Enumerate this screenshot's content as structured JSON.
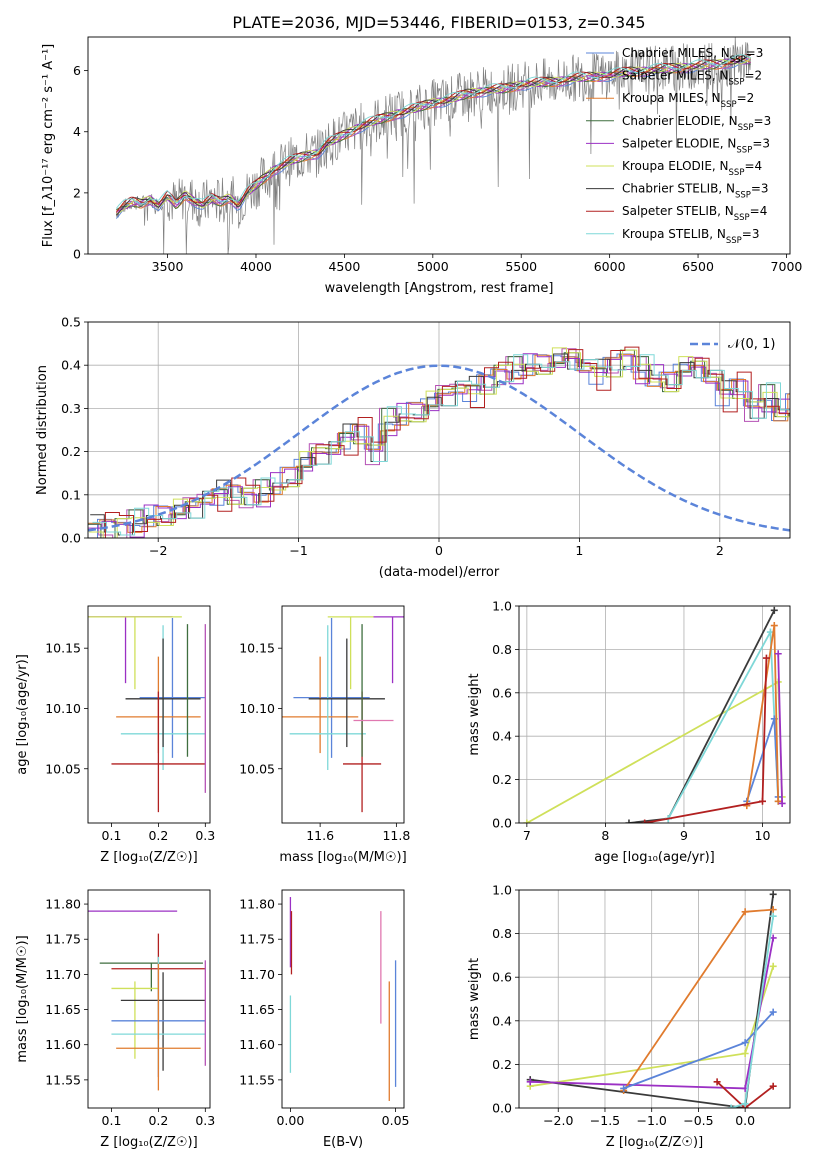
{
  "figure_title": "PLATE=2036, MJD=53446, FIBERID=0153, z=0.345",
  "colors": {
    "chabrier_miles": "#5b84d9",
    "salpeter_miles": "#b552b5",
    "kroupa_miles": "#e07b2e",
    "chabrier_elodie": "#3f6e3f",
    "salpeter_elodie": "#9b30c4",
    "kroupa_elodie": "#cfe05a",
    "chabrier_stelib": "#3a3a3a",
    "salpeter_stelib": "#b22020",
    "kroupa_stelib": "#7fd8d8",
    "data": "#808080",
    "pink": "#e078b0",
    "gaussian": "#5b84d9",
    "grid": "#b0b0b0"
  },
  "chart_data": [
    {
      "id": "spectrum",
      "type": "line",
      "title": "PLATE=2036, MJD=53446, FIBERID=0153, z=0.345",
      "xlabel": "wavelength [Angstrom, rest frame]",
      "ylabel": "Flux [f_λ10⁻¹⁷ erg cm⁻² s⁻¹ A⁻¹]",
      "xlim": [
        3050,
        7020
      ],
      "ylim": [
        0,
        7.1
      ],
      "xticks": [
        "3500",
        "4000",
        "4500",
        "5000",
        "5500",
        "6000",
        "6500",
        "7000"
      ],
      "yticks": [
        "0",
        "2",
        "4",
        "6"
      ],
      "grid": false,
      "legend_position": "top-right",
      "legend": [
        {
          "label": "Chabrier MILES, N",
          "sub": "SSP",
          "suffix": "=3"
        },
        {
          "label": "Salpeter MILES, N",
          "sub": "SSP",
          "suffix": "=2"
        },
        {
          "label": "Kroupa MILES, N",
          "sub": "SSP",
          "suffix": "=2"
        },
        {
          "label": "Chabrier ELODIE, N",
          "sub": "SSP",
          "suffix": "=3"
        },
        {
          "label": "Salpeter ELODIE, N",
          "sub": "SSP",
          "suffix": "=3"
        },
        {
          "label": "Kroupa ELODIE, N",
          "sub": "SSP",
          "suffix": "=4"
        },
        {
          "label": "Chabrier STELIB, N",
          "sub": "SSP",
          "suffix": "=3"
        },
        {
          "label": "Salpeter STELIB, N",
          "sub": "SSP",
          "suffix": "=4"
        },
        {
          "label": "Kroupa STELIB, N",
          "sub": "SSP",
          "suffix": "=3"
        }
      ],
      "model_continuum": {
        "x": [
          3210,
          3250,
          3300,
          3350,
          3400,
          3450,
          3500,
          3550,
          3600,
          3650,
          3700,
          3750,
          3800,
          3850,
          3900,
          3950,
          4000,
          4050,
          4100,
          4150,
          4200,
          4250,
          4300,
          4350,
          4400,
          4450,
          4500,
          4550,
          4600,
          4700,
          4800,
          4900,
          5000,
          5100,
          5200,
          5300,
          5400,
          5500,
          5600,
          5700,
          5800,
          5900,
          6000,
          6100,
          6200,
          6300,
          6400,
          6500,
          6600,
          6700,
          6800
        ],
        "y": [
          1.35,
          1.55,
          1.7,
          1.65,
          1.8,
          1.6,
          1.9,
          1.6,
          1.95,
          1.75,
          1.6,
          1.8,
          1.7,
          1.85,
          1.6,
          2.0,
          2.25,
          2.5,
          2.75,
          2.9,
          3.05,
          3.15,
          3.25,
          3.3,
          3.6,
          3.75,
          3.9,
          4.05,
          4.2,
          4.4,
          4.6,
          4.75,
          4.95,
          5.05,
          5.25,
          5.35,
          5.4,
          5.55,
          5.6,
          5.65,
          5.75,
          5.8,
          5.85,
          5.95,
          6.0,
          6.05,
          6.1,
          6.15,
          6.2,
          6.3,
          6.35
        ]
      }
    },
    {
      "id": "residuals",
      "type": "bar",
      "xlabel": "(data-model)/error",
      "ylabel": "Normed distribution",
      "xlim": [
        -2.5,
        2.5
      ],
      "ylim": [
        0,
        0.5
      ],
      "xticks": [
        "−2",
        "−1",
        "0",
        "1",
        "2"
      ],
      "yticks": [
        "0.0",
        "0.1",
        "0.2",
        "0.3",
        "0.4",
        "0.5"
      ],
      "grid": true,
      "legend_position": "top-right",
      "legend": [
        {
          "label": "𝒩(0, 1)"
        }
      ],
      "bin_width": 0.1,
      "bin_start": -2.5,
      "values": [
        0.02,
        0.025,
        0.03,
        0.035,
        0.045,
        0.05,
        0.06,
        0.075,
        0.095,
        0.1,
        0.105,
        0.1,
        0.105,
        0.12,
        0.14,
        0.17,
        0.2,
        0.21,
        0.23,
        0.245,
        0.2,
        0.27,
        0.28,
        0.29,
        0.31,
        0.335,
        0.35,
        0.34,
        0.36,
        0.385,
        0.39,
        0.395,
        0.4,
        0.41,
        0.42,
        0.4,
        0.38,
        0.4,
        0.42,
        0.39,
        0.37,
        0.36,
        0.39,
        0.4,
        0.375,
        0.33,
        0.35,
        0.3,
        0.325,
        0.29,
        0.31,
        0.28,
        0.25,
        0.26,
        0.22,
        0.21,
        0.2,
        0.18,
        0.16,
        0.14,
        0.13,
        0.12,
        0.11,
        0.105,
        0.1,
        0.09,
        0.08,
        0.07,
        0.065,
        0.06,
        0.055,
        0.05,
        0.048,
        0.045,
        0.04,
        0.04,
        0.038,
        0.035,
        0.03,
        0.03,
        0.03,
        0.03,
        0.02,
        0.02,
        0.02,
        0.02,
        0.02,
        0.02,
        0.02,
        0.02,
        0.02,
        0.02,
        0.02,
        0.02,
        0.02,
        0.02,
        0.02,
        0.02,
        0.02,
        0.02
      ],
      "series_offsets": [
        0.0,
        0.012,
        -0.01,
        0.018,
        -0.015,
        0.006,
        0.022,
        -0.02,
        0.01
      ],
      "gaussian": {
        "mean": 0,
        "sigma": 1
      }
    },
    {
      "id": "age_vs_Z",
      "type": "scatter",
      "xlabel": "Z [log₁₀(Z/Z☉)]",
      "ylabel": "age  [log₁₀(age/yr)]",
      "xlim": [
        0.05,
        0.31
      ],
      "ylim": [
        10.005,
        10.185
      ],
      "xticks": [
        "0.1",
        "0.2",
        "0.3"
      ],
      "yticks": [
        "10.05",
        "10.10",
        "10.15"
      ],
      "grid": false,
      "points": [
        {
          "series": "chabrier_miles",
          "x": 0.23,
          "xerr": 0.07,
          "y": 10.109,
          "yerr_lo": 0.05,
          "yerr_hi": 0.066
        },
        {
          "series": "kroupa_miles",
          "x": 0.2,
          "xerr": 0.09,
          "y": 10.093,
          "yerr_lo": 0.03,
          "yerr_hi": 0.05
        },
        {
          "series": "kroupa_stelib",
          "x": 0.21,
          "xerr": 0.09,
          "y": 10.079,
          "yerr_lo": 0.03,
          "yerr_hi": 0.09
        },
        {
          "series": "chabrier_stelib",
          "x": 0.21,
          "xerr": 0.08,
          "y": 10.108,
          "yerr_lo": 0.04,
          "yerr_hi": 0.05
        },
        {
          "series": "salpeter_stelib",
          "x": 0.2,
          "xerr": 0.1,
          "y": 10.054,
          "yerr_lo": 0.04,
          "yerr_hi": 0.06
        },
        {
          "series": "salpeter_elodie",
          "x": 0.13,
          "xerr": 0.1,
          "y": 10.176,
          "yerr_lo": 0.055,
          "yerr_hi": 0.0
        },
        {
          "series": "kroupa_elodie",
          "x": 0.15,
          "xerr": 0.1,
          "y": 10.176,
          "yerr_lo": 0.06,
          "yerr_hi": 0.0
        },
        {
          "series": "chabrier_elodie",
          "x": 0.262,
          "xerr": 0.0,
          "y": 10.11,
          "yerr_lo": 0.05,
          "yerr_hi": 0.06
        },
        {
          "series": "salpeter_miles",
          "x": 0.3,
          "xerr": 0.0,
          "y": 10.1,
          "yerr_lo": 0.07,
          "yerr_hi": 0.07
        }
      ]
    },
    {
      "id": "age_vs_mass",
      "type": "scatter",
      "xlabel": "mass [log₁₀(M/M☉)]",
      "ylabel": "",
      "xlim": [
        11.5,
        11.82
      ],
      "ylim": [
        10.005,
        10.185
      ],
      "xticks": [
        "11.6",
        "11.8"
      ],
      "yticks": [
        "10.05",
        "10.10",
        "10.15"
      ],
      "grid": false,
      "points": [
        {
          "series": "chabrier_miles",
          "x": 11.63,
          "xerr": 0.1,
          "y": 10.109,
          "yerr_lo": 0.05,
          "yerr_hi": 0.066
        },
        {
          "series": "kroupa_miles",
          "x": 11.6,
          "xerr": 0.1,
          "y": 10.093,
          "yerr_lo": 0.03,
          "yerr_hi": 0.05
        },
        {
          "series": "kroupa_stelib",
          "x": 11.62,
          "xerr": 0.1,
          "y": 10.079,
          "yerr_lo": 0.03,
          "yerr_hi": 0.09
        },
        {
          "series": "chabrier_stelib",
          "x": 11.67,
          "xerr": 0.1,
          "y": 10.108,
          "yerr_lo": 0.04,
          "yerr_hi": 0.05
        },
        {
          "series": "salpeter_stelib",
          "x": 11.71,
          "xerr": 0.05,
          "y": 10.054,
          "yerr_lo": 0.04,
          "yerr_hi": 0.06
        },
        {
          "series": "salpeter_elodie",
          "x": 11.79,
          "xerr": 0.05,
          "y": 10.176,
          "yerr_lo": 0.055,
          "yerr_hi": 0.0
        },
        {
          "series": "kroupa_elodie",
          "x": 11.68,
          "xerr": 0.06,
          "y": 10.176,
          "yerr_lo": 0.06,
          "yerr_hi": 0.0
        },
        {
          "series": "chabrier_elodie",
          "x": 11.71,
          "xerr": 0.0,
          "y": 10.11,
          "yerr_lo": 0.05,
          "yerr_hi": 0.06
        },
        {
          "series": "pink",
          "x": 11.74,
          "xerr": 0.0,
          "y": 10.09,
          "yerr_lo": 0.0,
          "yerr_hi": 0.0
        }
      ]
    },
    {
      "id": "massweight_vs_age",
      "type": "line",
      "xlabel": "age  [log₁₀(age/yr)]",
      "ylabel": "mass weight",
      "xlim": [
        6.9,
        10.35
      ],
      "ylim": [
        0,
        1.0
      ],
      "xticks": [
        "7",
        "8",
        "9",
        "10"
      ],
      "yticks": [
        "0.0",
        "0.2",
        "0.4",
        "0.6",
        "0.8",
        "1.0"
      ],
      "grid": true,
      "series": [
        {
          "name": "kroupa_elodie",
          "x": [
            7.0,
            10.2,
            10.25
          ],
          "y": [
            0.0,
            0.65,
            0.12
          ]
        },
        {
          "name": "chabrier_stelib",
          "x": [
            8.3,
            8.8,
            10.15
          ],
          "y": [
            0.0,
            0.02,
            0.98
          ]
        },
        {
          "name": "kroupa_stelib",
          "x": [
            8.8,
            10.1,
            10.2
          ],
          "y": [
            0.02,
            0.88,
            0.1
          ]
        },
        {
          "name": "chabrier_miles",
          "x": [
            9.8,
            10.15,
            10.2
          ],
          "y": [
            0.1,
            0.48,
            0.12
          ]
        },
        {
          "name": "kroupa_miles",
          "x": [
            9.8,
            10.15,
            10.2
          ],
          "y": [
            0.08,
            0.91,
            0.1
          ]
        },
        {
          "name": "salpeter_elodie",
          "x": [
            10.2,
            10.25
          ],
          "y": [
            0.78,
            0.09
          ]
        },
        {
          "name": "salpeter_stelib",
          "x": [
            8.5,
            10.0,
            10.05
          ],
          "y": [
            0.0,
            0.1,
            0.76
          ]
        }
      ]
    },
    {
      "id": "mass_vs_Z",
      "type": "scatter",
      "xlabel": "Z [log₁₀(Z/Z☉)]",
      "ylabel": "mass [log₁₀(M/M☉)]",
      "xlim": [
        0.05,
        0.31
      ],
      "ylim": [
        11.51,
        11.82
      ],
      "xticks": [
        "0.1",
        "0.2",
        "0.3"
      ],
      "yticks": [
        "11.55",
        "11.60",
        "11.65",
        "11.70",
        "11.75",
        "11.80"
      ],
      "grid": false,
      "points": [
        {
          "series": "salpeter_elodie",
          "x": 0.14,
          "xerr": 0.1,
          "y": 11.79,
          "yerr_lo": 0.0,
          "yerr_hi": 0.0
        },
        {
          "series": "chabrier_elodie",
          "x": 0.185,
          "xerr": 0.11,
          "y": 11.716,
          "yerr_lo": 0.04,
          "yerr_hi": 0.0
        },
        {
          "series": "salpeter_stelib",
          "x": 0.2,
          "xerr": 0.1,
          "y": 11.708,
          "yerr_lo": 0.1,
          "yerr_hi": 0.05
        },
        {
          "series": "kroupa_elodie",
          "x": 0.15,
          "xerr": 0.05,
          "y": 11.68,
          "yerr_lo": 0.1,
          "yerr_hi": 0.01
        },
        {
          "series": "chabrier_stelib",
          "x": 0.21,
          "xerr": 0.09,
          "y": 11.663,
          "yerr_lo": 0.1,
          "yerr_hi": 0.04
        },
        {
          "series": "chabrier_miles",
          "x": 0.2,
          "xerr": 0.1,
          "y": 11.634,
          "yerr_lo": 0.08,
          "yerr_hi": 0.07
        },
        {
          "series": "kroupa_stelib",
          "x": 0.2,
          "xerr": 0.1,
          "y": 11.615,
          "yerr_lo": 0.05,
          "yerr_hi": 0.11
        },
        {
          "series": "kroupa_miles",
          "x": 0.2,
          "xerr": 0.09,
          "y": 11.595,
          "yerr_lo": 0.06,
          "yerr_hi": 0.12
        },
        {
          "series": "salpeter_miles",
          "x": 0.3,
          "xerr": 0.0,
          "y": 11.65,
          "yerr_lo": 0.08,
          "yerr_hi": 0.07
        }
      ]
    },
    {
      "id": "mass_vs_ebv",
      "type": "scatter",
      "xlabel": "E(B-V)",
      "ylabel": "",
      "xlim": [
        -0.004,
        0.054
      ],
      "ylim": [
        11.51,
        11.82
      ],
      "xticks": [
        "0.00",
        "0.05"
      ],
      "yticks": [
        "11.55",
        "11.60",
        "11.65",
        "11.70",
        "11.75",
        "11.80"
      ],
      "grid": false,
      "points": [
        {
          "series": "salpeter_elodie",
          "x": 0.0,
          "xerr": 0.0,
          "y": 11.76,
          "yerr_lo": 0.05,
          "yerr_hi": 0.05
        },
        {
          "series": "salpeter_stelib",
          "x": 0.0005,
          "xerr": 0.0,
          "y": 11.74,
          "yerr_lo": 0.04,
          "yerr_hi": 0.05
        },
        {
          "series": "kroupa_stelib",
          "x": 0.0,
          "xerr": 0.0,
          "y": 11.63,
          "yerr_lo": 0.07,
          "yerr_hi": 0.04
        },
        {
          "series": "pink",
          "x": 0.043,
          "xerr": 0.0,
          "y": 11.71,
          "yerr_lo": 0.08,
          "yerr_hi": 0.08
        },
        {
          "series": "kroupa_miles",
          "x": 0.047,
          "xerr": 0.0,
          "y": 11.6,
          "yerr_lo": 0.08,
          "yerr_hi": 0.09
        },
        {
          "series": "chabrier_miles",
          "x": 0.05,
          "xerr": 0.0,
          "y": 11.63,
          "yerr_lo": 0.09,
          "yerr_hi": 0.09
        }
      ]
    },
    {
      "id": "massweight_vs_Z",
      "type": "line",
      "xlabel": "Z [log₁₀(Z/Z☉)]",
      "ylabel": "mass weight",
      "xlim": [
        -2.42,
        0.48
      ],
      "ylim": [
        0,
        1.0
      ],
      "xticks": [
        "−2.0",
        "−1.5",
        "−1.0",
        "−0.5",
        "0.0"
      ],
      "yticks": [
        "0.0",
        "0.2",
        "0.4",
        "0.6",
        "0.8",
        "1.0"
      ],
      "grid": true,
      "series": [
        {
          "name": "kroupa_elodie",
          "x": [
            -2.3,
            0.0,
            0.3
          ],
          "y": [
            0.1,
            0.25,
            0.65
          ]
        },
        {
          "name": "chabrier_stelib",
          "x": [
            -2.3,
            0.0,
            0.3
          ],
          "y": [
            0.13,
            0.0,
            0.98
          ]
        },
        {
          "name": "salpeter_elodie",
          "x": [
            -2.3,
            0.0,
            0.3
          ],
          "y": [
            0.12,
            0.09,
            0.78
          ]
        },
        {
          "name": "kroupa_miles",
          "x": [
            -1.3,
            0.0,
            0.3
          ],
          "y": [
            0.08,
            0.9,
            0.91
          ]
        },
        {
          "name": "chabrier_miles",
          "x": [
            -1.3,
            0.0,
            0.3
          ],
          "y": [
            0.09,
            0.3,
            0.44
          ]
        },
        {
          "name": "salpeter_stelib",
          "x": [
            -0.3,
            0.0,
            0.3
          ],
          "y": [
            0.12,
            0.0,
            0.1
          ]
        },
        {
          "name": "kroupa_stelib",
          "x": [
            -0.15,
            0.0,
            0.3
          ],
          "y": [
            0.0,
            0.02,
            0.88
          ]
        }
      ]
    }
  ]
}
